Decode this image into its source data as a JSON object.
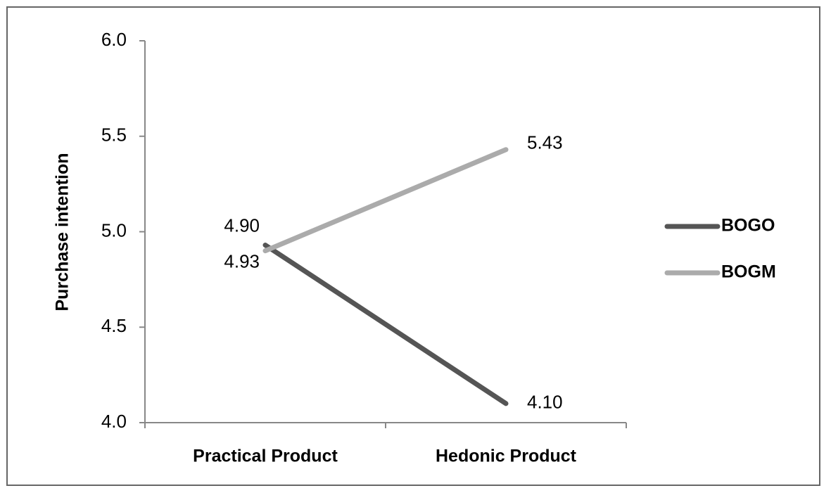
{
  "chart_data": {
    "type": "line",
    "y_label": "Purchase intention",
    "categories": [
      "Practical Product",
      "Hedonic Product"
    ],
    "series": [
      {
        "name": "BOGO",
        "color": "#555555",
        "values": [
          4.93,
          4.1
        ],
        "value_labels": [
          "4.93",
          "4.10"
        ]
      },
      {
        "name": "BOGM",
        "color": "#ababab",
        "values": [
          4.9,
          5.43
        ],
        "value_labels": [
          "4.90",
          "5.43"
        ]
      }
    ],
    "ylim": [
      4.0,
      6.0
    ],
    "yticks": [
      {
        "value": 4.0,
        "label": "4.0"
      },
      {
        "value": 4.5,
        "label": "4.5"
      },
      {
        "value": 5.0,
        "label": "5.0"
      },
      {
        "value": 5.5,
        "label": "5.5"
      },
      {
        "value": 6.0,
        "label": "6.0"
      }
    ],
    "grid": false,
    "legend": "right"
  }
}
